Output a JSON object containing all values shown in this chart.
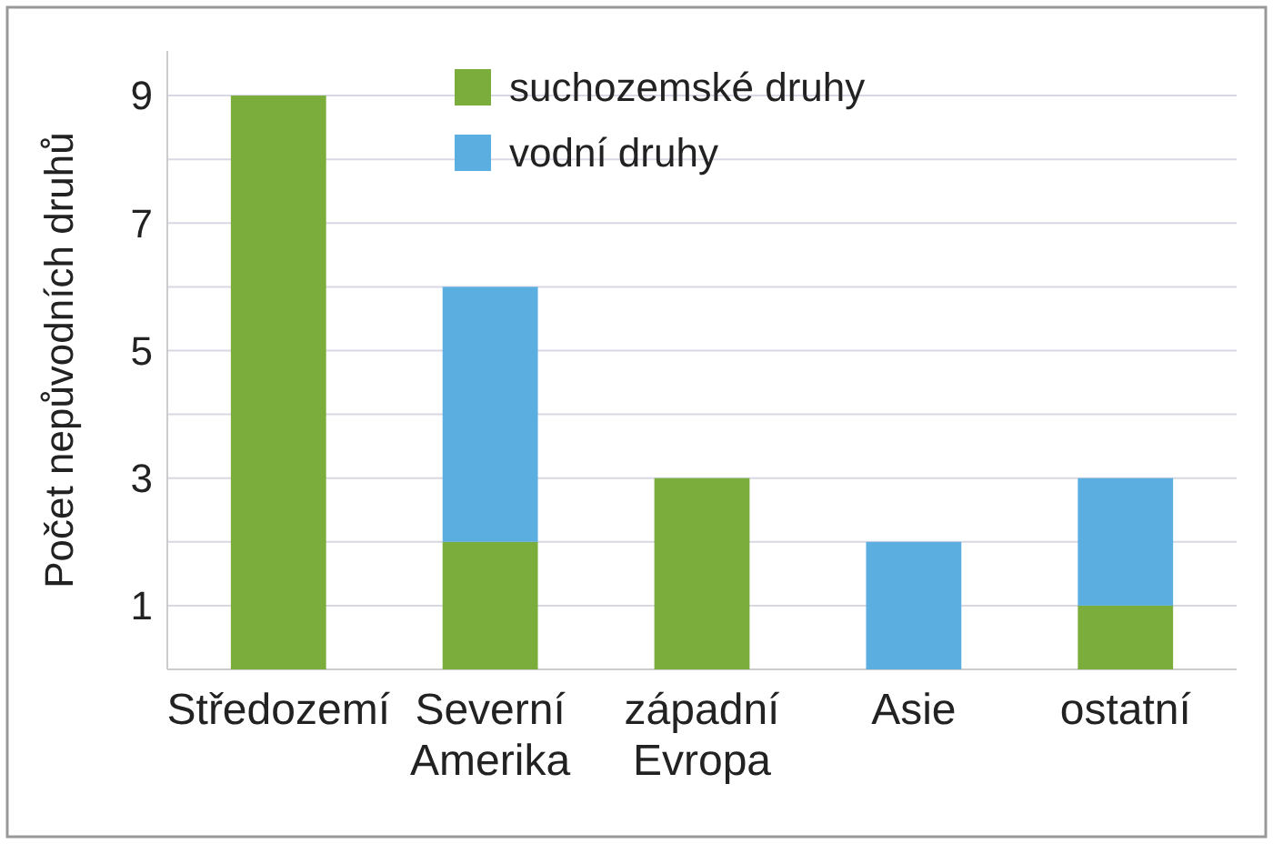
{
  "chart_data": {
    "type": "bar",
    "stacked": true,
    "ylabel": "Počet nepůvodních druhů",
    "categories": [
      "Středozemí",
      "Severní Amerika",
      "západní Evropa",
      "Asie",
      "ostatní"
    ],
    "series": [
      {
        "name": "suchozemské druhy",
        "color": "#7aad3c",
        "values": [
          9,
          2,
          3,
          0,
          1
        ]
      },
      {
        "name": "vodní druhy",
        "color": "#5aaee0",
        "values": [
          0,
          4,
          0,
          2,
          2
        ]
      }
    ],
    "ylim": [
      0,
      9.7
    ],
    "yticks": [
      1,
      {
        "value": 2,
        "label": null
      },
      3,
      {
        "value": 4,
        "label": null
      },
      5,
      {
        "value": 6,
        "label": null
      },
      7,
      {
        "value": 8,
        "label": null
      },
      9
    ],
    "grid": "y",
    "legend": "top"
  }
}
